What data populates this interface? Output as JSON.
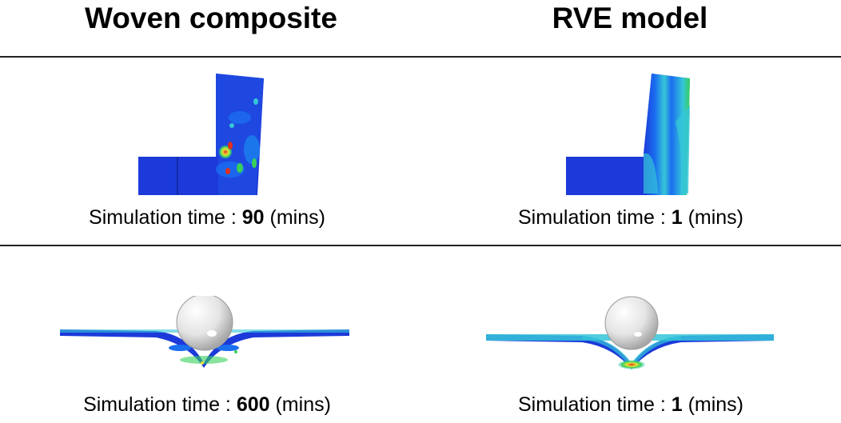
{
  "header": {
    "left_title": "Woven composite",
    "right_title": "RVE model"
  },
  "rows": [
    {
      "left": {
        "label": "Simulation time : ",
        "value": "90",
        "unit": " (mins)"
      },
      "right": {
        "label": "Simulation time : ",
        "value": "1",
        "unit": " (mins)"
      }
    },
    {
      "left": {
        "label": "Simulation time : ",
        "value": "600",
        "unit": " (mins)"
      },
      "right": {
        "label": "Simulation time : ",
        "value": "1",
        "unit": " (mins)"
      }
    }
  ],
  "colors": {
    "deep_blue": "#1c3ad9",
    "mid_blue": "#1a6ef0",
    "cyan": "#35c6d8",
    "green": "#38d05a",
    "yellow": "#e6e03a",
    "red": "#e0301c",
    "sphere": "#e8e8e8"
  }
}
